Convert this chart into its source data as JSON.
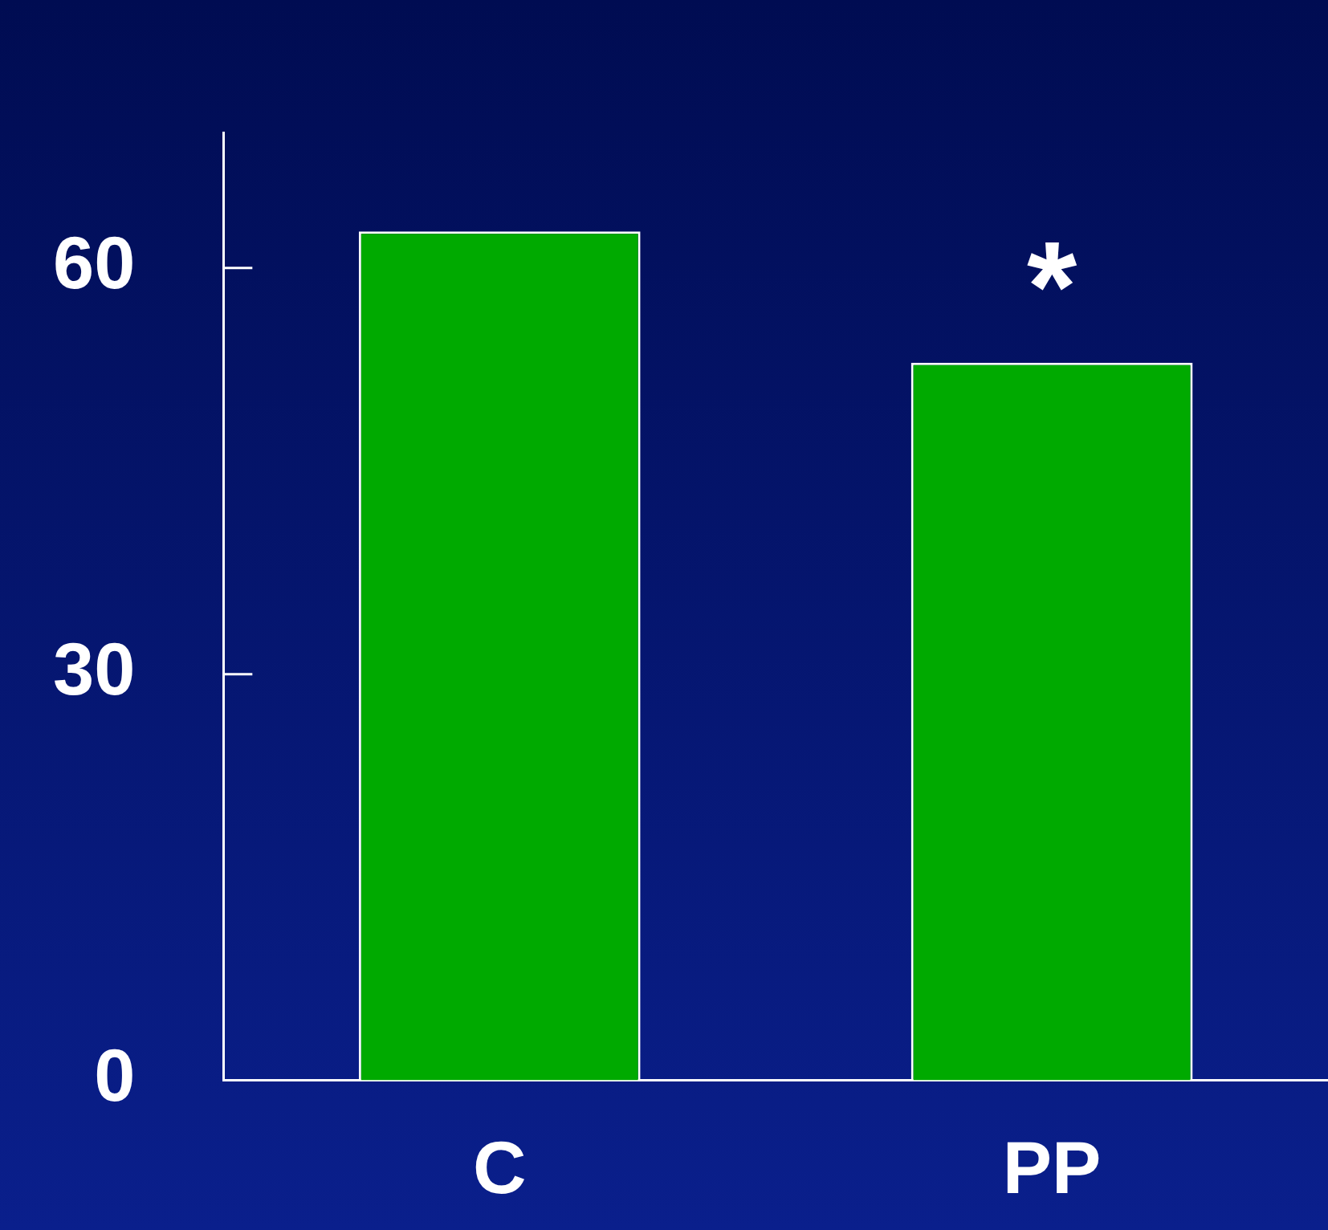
{
  "chart_data": {
    "type": "bar",
    "categories": [
      "C",
      "PP"
    ],
    "values": [
      62.7,
      53.0
    ],
    "color": "#00aa00",
    "ylim": [
      0,
      70
    ],
    "yticks": [
      0,
      30,
      60
    ],
    "grid": false,
    "legend": false,
    "annotations": [
      "*"
    ]
  }
}
